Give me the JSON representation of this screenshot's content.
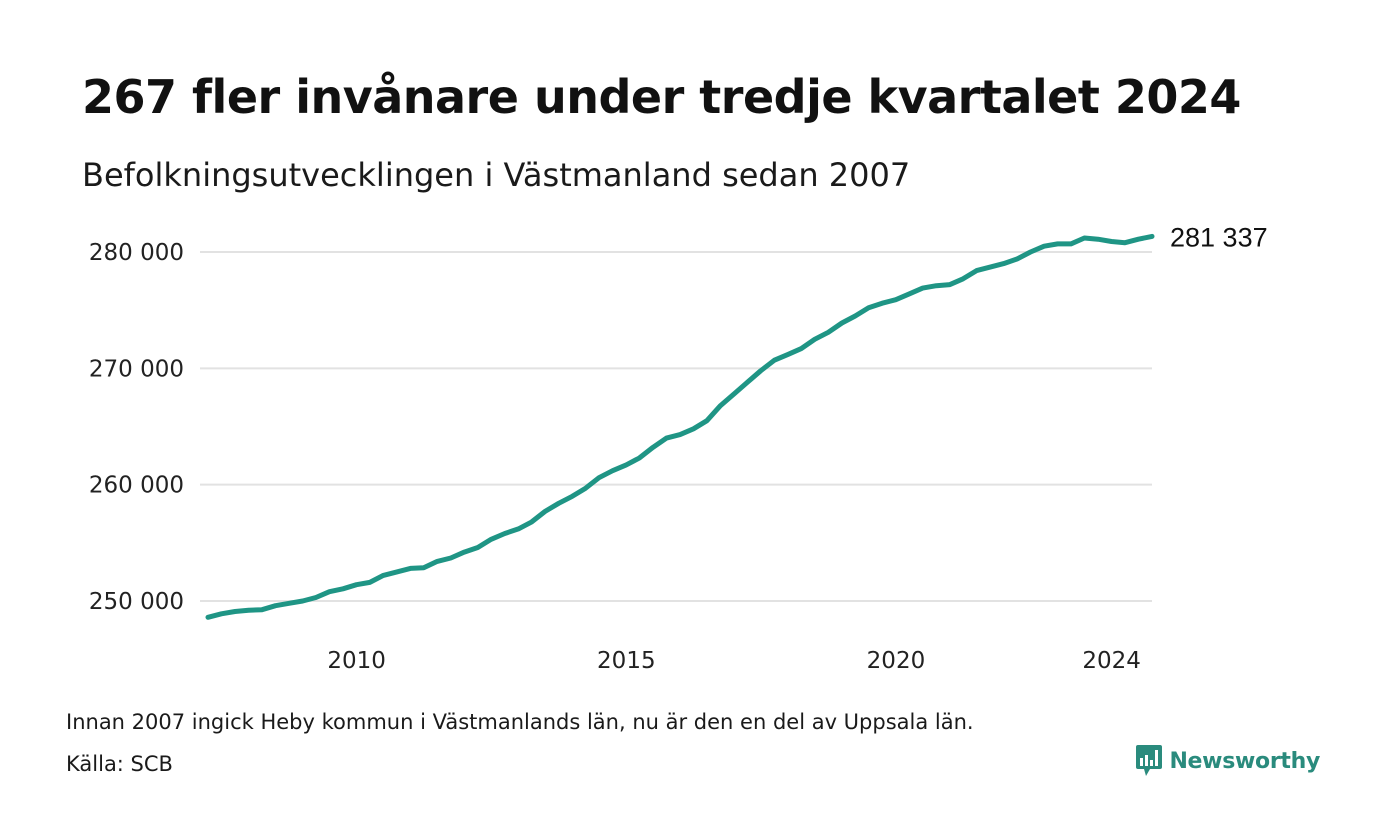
{
  "header": {
    "title": "267 fler invånare under tredje kvartalet 2024",
    "subtitle": "Befolkningsutvecklingen i Västmanland sedan 2007"
  },
  "footer": {
    "note": "Innan 2007 ingick Heby kommun i Västmanlands län, nu är den en del av Uppsala län.",
    "source": "Källa: SCB",
    "brand": "Newsworthy",
    "brand_icon": "newsworthy-logo-icon"
  },
  "colors": {
    "line": "#1f9585",
    "grid": "#e2e2e2",
    "brand": "#2a8b7d"
  },
  "chart_data": {
    "type": "line",
    "title": "267 fler invånare under tredje kvartalet 2024",
    "subtitle": "Befolkningsutvecklingen i Västmanland sedan 2007",
    "xlabel": "",
    "ylabel": "",
    "grid": true,
    "x_ticks": [
      "2010",
      "2015",
      "2020",
      "2024"
    ],
    "y_ticks": [
      "250 000",
      "260 000",
      "270 000",
      "280 000"
    ],
    "ylim": [
      248000,
      282000
    ],
    "end_label": "281 337",
    "series": [
      {
        "x": [
          "2007-03-31",
          "2007-06-30",
          "2007-09-30",
          "2007-12-31",
          "2008-03-31",
          "2008-06-30",
          "2008-09-30",
          "2008-12-31",
          "2009-03-31",
          "2009-06-30",
          "2009-09-30",
          "2009-12-31",
          "2010-03-31",
          "2010-06-30",
          "2010-09-30",
          "2010-12-31",
          "2011-03-31",
          "2011-06-30",
          "2011-09-30",
          "2011-12-31",
          "2012-03-31",
          "2012-06-30",
          "2012-09-30",
          "2012-12-31",
          "2013-03-31",
          "2013-06-30",
          "2013-09-30",
          "2013-12-31",
          "2014-03-31",
          "2014-06-30",
          "2014-09-30",
          "2014-12-31",
          "2015-03-31",
          "2015-06-30",
          "2015-09-30",
          "2015-12-31",
          "2016-03-31",
          "2016-06-30",
          "2016-09-30",
          "2016-12-31",
          "2017-03-31",
          "2017-06-30",
          "2017-09-30",
          "2017-12-31",
          "2018-03-31",
          "2018-06-30",
          "2018-09-30",
          "2018-12-31",
          "2019-03-31",
          "2019-06-30",
          "2019-09-30",
          "2019-12-31",
          "2020-03-31",
          "2020-06-30",
          "2020-09-30",
          "2020-12-31",
          "2021-03-31",
          "2021-06-30",
          "2021-09-30",
          "2021-12-31",
          "2022-03-31",
          "2022-06-30",
          "2022-09-30",
          "2022-12-31",
          "2023-03-31",
          "2023-06-30",
          "2023-09-30",
          "2023-12-31",
          "2024-03-31",
          "2024-06-30",
          "2024-09-30"
        ],
        "values": [
          248600,
          248900,
          249100,
          249200,
          249250,
          249600,
          249800,
          250000,
          250300,
          250800,
          251050,
          251400,
          251600,
          252200,
          252500,
          252800,
          252850,
          253400,
          253700,
          254200,
          254600,
          255300,
          255800,
          256200,
          256800,
          257700,
          258400,
          259000,
          259700,
          260600,
          261200,
          261700,
          262300,
          263200,
          264000,
          264300,
          264800,
          265500,
          266800,
          267800,
          268800,
          269800,
          270700,
          271200,
          271700,
          272500,
          273100,
          273900,
          274500,
          275200,
          275600,
          275900,
          276400,
          276900,
          277100,
          277200,
          277700,
          278400,
          278700,
          279000,
          279400,
          280000,
          280500,
          280700,
          280700,
          281200,
          281100,
          280900,
          280800,
          281100,
          281337
        ]
      }
    ]
  }
}
